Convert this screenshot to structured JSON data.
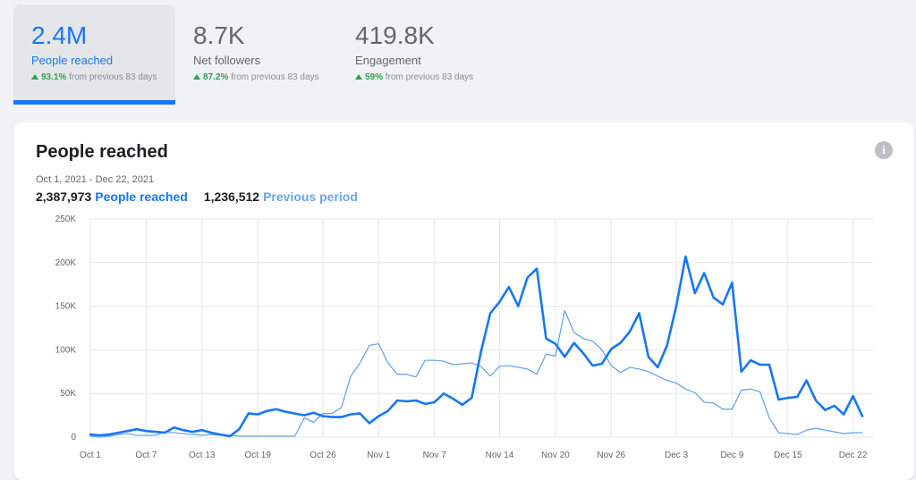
{
  "metrics": [
    {
      "value": "2.4M",
      "label": "People reached",
      "pct": "93.1%",
      "change_text": "from previous 83 days"
    },
    {
      "value": "8.7K",
      "label": "Net followers",
      "pct": "87.2%",
      "change_text": "from previous 83 days"
    },
    {
      "value": "419.8K",
      "label": "Engagement",
      "pct": "59%",
      "change_text": "from previous 83 days"
    }
  ],
  "card": {
    "title": "People reached",
    "info_icon_glyph": "i",
    "date_range": "Oct 1, 2021 - Dec 22, 2021",
    "current_total": "2,387,973",
    "current_label": "People reached",
    "previous_total": "1,236,512",
    "previous_label": "Previous period"
  },
  "colors": {
    "current": "#1877f2",
    "previous": "#69a6ea",
    "grid": "#e4e6eb",
    "tick": "#606770"
  },
  "chart_data": {
    "type": "line",
    "x_tick_labels": [
      "Oct 1",
      "Oct 7",
      "Oct 13",
      "Oct 19",
      "Oct 26",
      "Nov 1",
      "Nov 7",
      "Nov 14",
      "Nov 20",
      "Nov 26",
      "Dec 3",
      "Dec 9",
      "Dec 15",
      "Dec 22"
    ],
    "x_tick_days": [
      0,
      6,
      12,
      18,
      25,
      31,
      37,
      44,
      50,
      56,
      63,
      69,
      75,
      82
    ],
    "y_tick_labels": [
      "0",
      "50K",
      "100K",
      "150K",
      "200K",
      "250K"
    ],
    "ylim": [
      0,
      250000
    ],
    "grid": true,
    "series": [
      {
        "name": "People reached",
        "values": [
          3000,
          2000,
          3000,
          5000,
          7000,
          9000,
          7000,
          6000,
          5000,
          11000,
          8000,
          6000,
          8000,
          5000,
          3000,
          1000,
          9000,
          27000,
          26000,
          30000,
          32000,
          29000,
          27000,
          25000,
          28000,
          24000,
          23000,
          23000,
          26000,
          27000,
          16000,
          24000,
          30000,
          42000,
          41000,
          42000,
          38000,
          40000,
          50000,
          44000,
          37000,
          45000,
          98000,
          142000,
          155000,
          172000,
          150000,
          183000,
          193000,
          113000,
          107000,
          92000,
          108000,
          96000,
          82000,
          84000,
          101000,
          108000,
          121000,
          142000,
          92000,
          80000,
          105000,
          150000,
          207000,
          165000,
          188000,
          160000,
          152000,
          177000,
          75000,
          88000,
          83000,
          83000,
          43000,
          45000,
          46000,
          65000,
          42000,
          31000,
          36000,
          26000,
          47000,
          24000
        ]
      },
      {
        "name": "Previous period",
        "values": [
          1000,
          0,
          1000,
          3000,
          4000,
          2000,
          2000,
          2000,
          6000,
          5000,
          4000,
          3000,
          2000,
          3000,
          2000,
          2000,
          1000,
          1000,
          1000,
          1000,
          1000,
          1000,
          1000,
          22000,
          17000,
          27000,
          27000,
          34000,
          70000,
          85000,
          105000,
          107000,
          85000,
          72000,
          72000,
          69000,
          88000,
          88000,
          87000,
          83000,
          84000,
          85000,
          81000,
          70000,
          81000,
          82000,
          80000,
          78000,
          72000,
          95000,
          93000,
          145000,
          120000,
          113000,
          110000,
          100000,
          82000,
          74000,
          80000,
          78000,
          75000,
          70000,
          65000,
          62000,
          55000,
          51000,
          40000,
          39000,
          32000,
          32000,
          54000,
          55000,
          52000,
          22000,
          5000,
          4000,
          3000,
          8000,
          10000,
          8000,
          6000,
          4000,
          5000,
          5000
        ]
      }
    ]
  }
}
